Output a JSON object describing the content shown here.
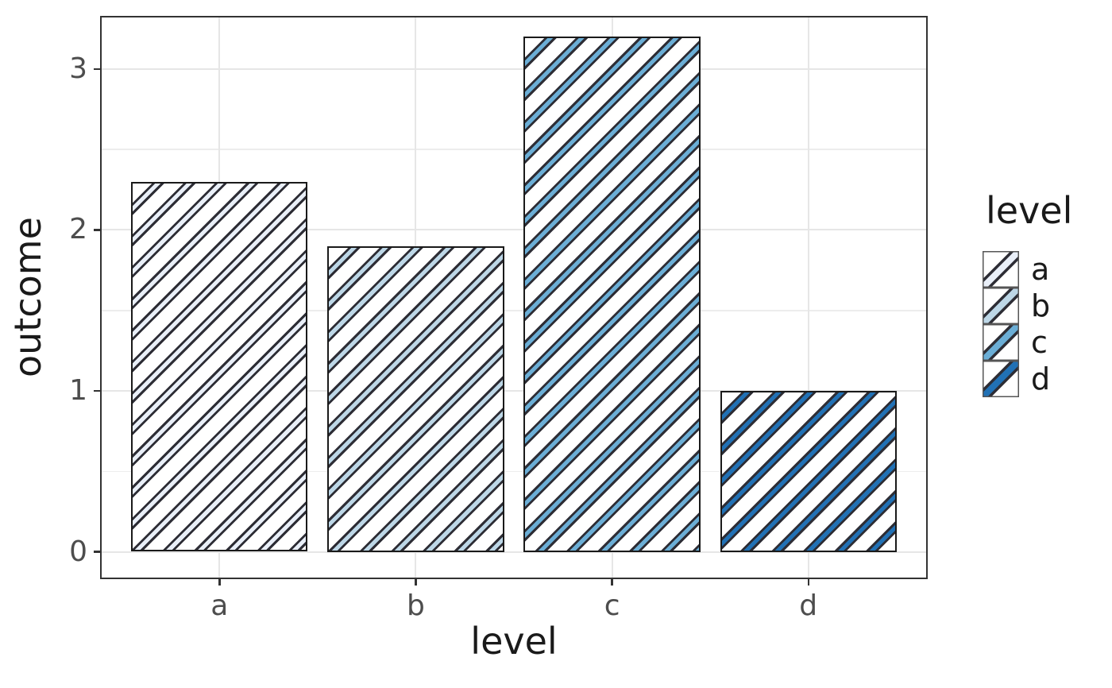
{
  "chart_data": {
    "type": "bar",
    "title": "",
    "categories": [
      "a",
      "b",
      "c",
      "d"
    ],
    "values": [
      2.3,
      1.9,
      3.2,
      1.0
    ],
    "xlabel": "level",
    "ylabel": "outcome",
    "ylim": [
      -0.16,
      3.32
    ],
    "yticks": [
      0,
      1,
      2,
      3
    ],
    "yminor_ticks": [
      0.5,
      1.5,
      2.5
    ],
    "grid": "major-and-minor-horizontal, major-vertical-at-categories",
    "legend_position": "right",
    "bar_width_fraction": 0.9,
    "pattern": "diagonal-stripes-ascending-45deg",
    "bars": [
      {
        "label": "a",
        "value": 2.3,
        "stripe_fill": "#E9EFF8"
      },
      {
        "label": "b",
        "value": 1.9,
        "stripe_fill": "#BDD7E7"
      },
      {
        "label": "c",
        "value": 3.2,
        "stripe_fill": "#6BAED6"
      },
      {
        "label": "d",
        "value": 1.0,
        "stripe_fill": "#2171B5"
      }
    ],
    "legend": {
      "title": "level",
      "entries": [
        {
          "label": "a",
          "stripe_fill": "#E9EFF8"
        },
        {
          "label": "b",
          "stripe_fill": "#BDD7E7"
        },
        {
          "label": "c",
          "stripe_fill": "#6BAED6"
        },
        {
          "label": "d",
          "stripe_fill": "#2171B5"
        }
      ]
    },
    "colors": {
      "background": "#FFFFFF",
      "stripe_outline": "#2D2D35",
      "bar_border": "#1A1A1A",
      "panel_border": "#333333",
      "grid_major": "#E6E6E6",
      "grid_minor": "#EDEDED",
      "tick_mark": "#333333",
      "tick_label": "#4D4D4D",
      "axis_title": "#1A1A1A",
      "legend_key_border": "#555555"
    }
  }
}
